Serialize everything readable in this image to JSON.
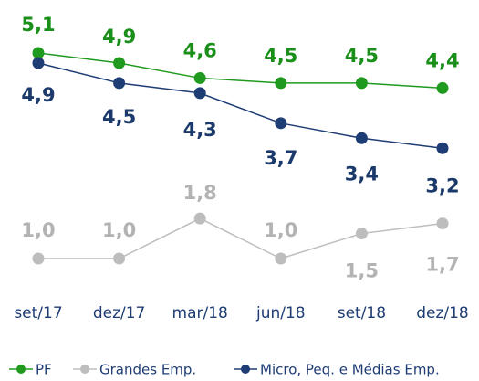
{
  "chart_data": {
    "type": "line",
    "categories": [
      "set/17",
      "dez/17",
      "mar/18",
      "jun/18",
      "set/18",
      "dez/18"
    ],
    "series": [
      {
        "name": "PF",
        "color": "#1f9a1f",
        "values": [
          5.1,
          4.9,
          4.6,
          4.5,
          4.5,
          4.4
        ],
        "value_labels": [
          "5,1",
          "4,9",
          "4,6",
          "4,5",
          "4,5",
          "4,4"
        ]
      },
      {
        "name": "Grandes Emp.",
        "color": "#bdbdbd",
        "values": [
          1.0,
          1.0,
          1.8,
          1.0,
          1.5,
          1.7
        ],
        "value_labels": [
          "1,0",
          "1,0",
          "1,8",
          "1,0",
          "1,5",
          "1,7"
        ]
      },
      {
        "name": "Micro, Peq. e Médias Emp.",
        "color": "#1e3d74",
        "values": [
          4.9,
          4.5,
          4.3,
          3.7,
          3.4,
          3.2
        ],
        "value_labels": [
          "4,9",
          "4,5",
          "4,3",
          "3,7",
          "3,4",
          "3,2"
        ]
      }
    ],
    "legend": "bottom"
  }
}
